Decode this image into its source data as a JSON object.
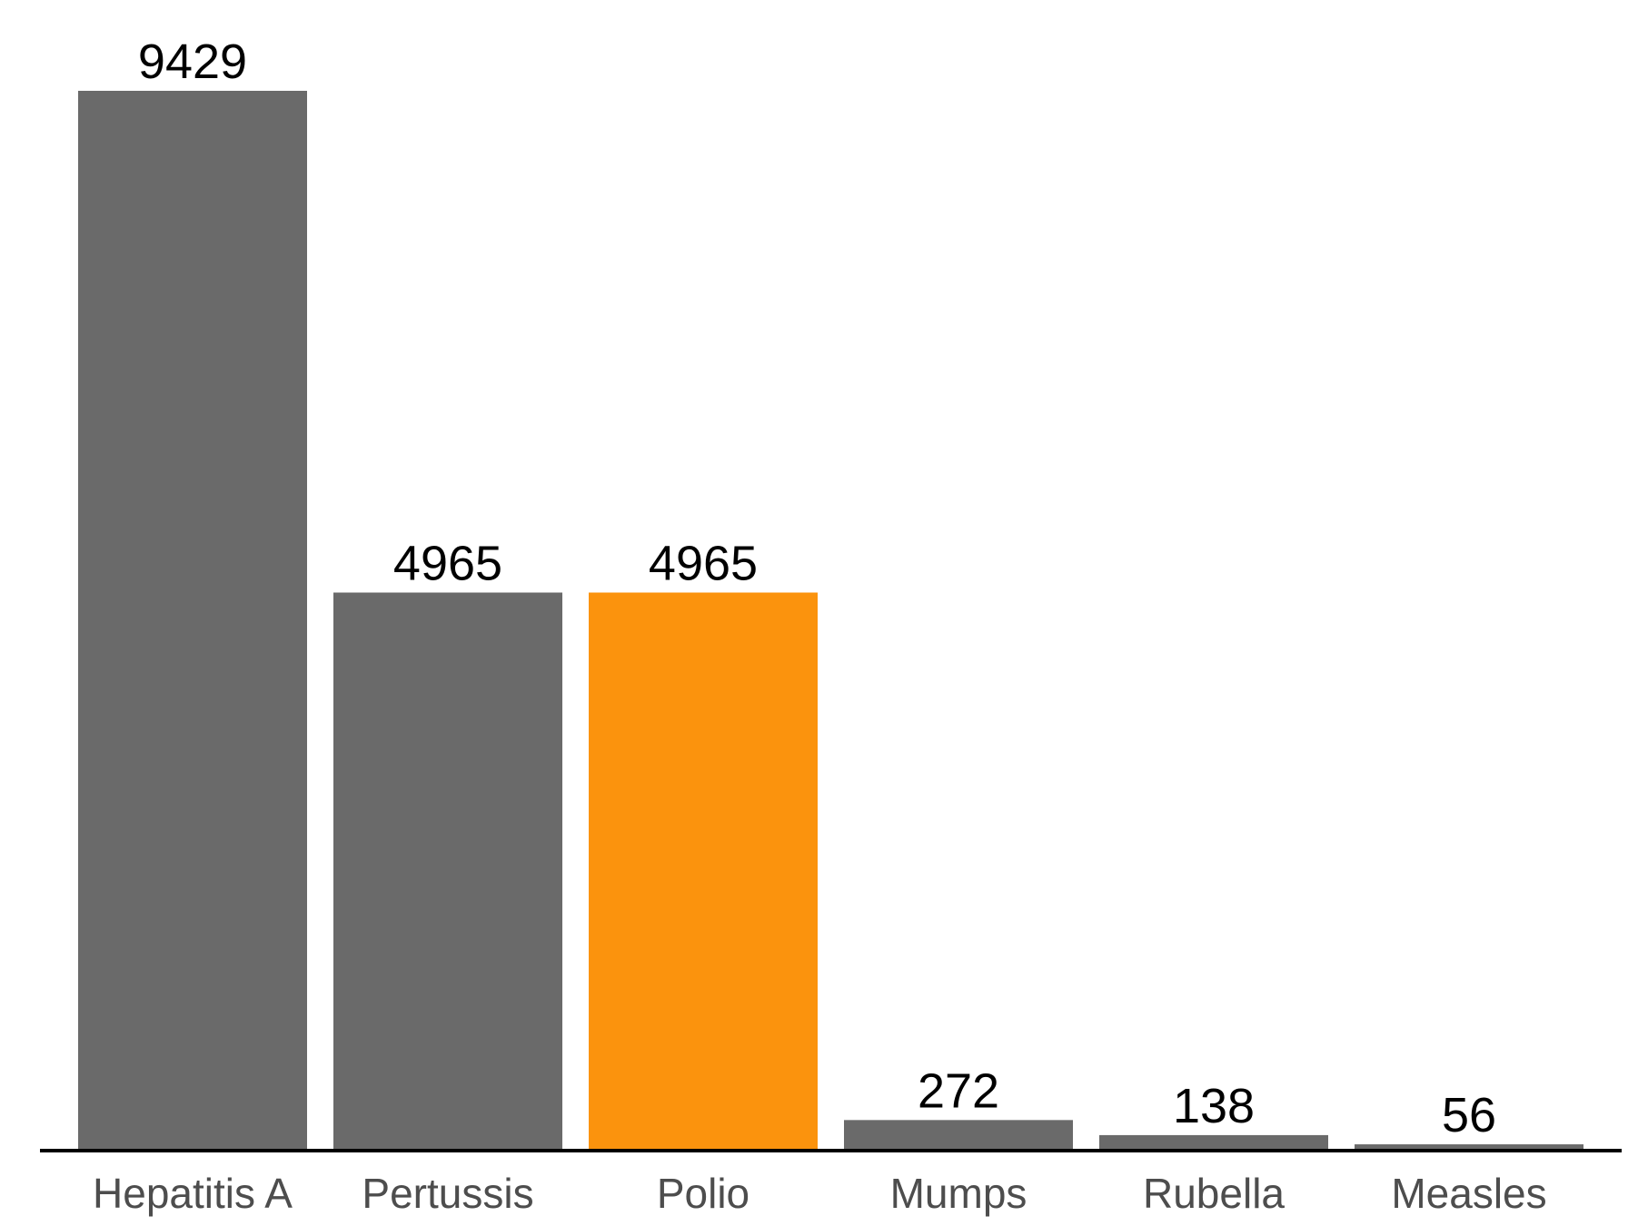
{
  "chart_data": {
    "type": "bar",
    "categories": [
      "Hepatitis A",
      "Pertussis",
      "Polio",
      "Mumps",
      "Rubella",
      "Measles"
    ],
    "values": [
      9429,
      4965,
      4965,
      272,
      138,
      56
    ],
    "data_labels": [
      "9429",
      "4965",
      "4965",
      "272",
      "138",
      "56"
    ],
    "ylim": [
      0,
      9429
    ],
    "grid": false,
    "legend": "none",
    "colors": {
      "default_bar": "#6a6a6a",
      "highlight_bar": "#fb930d",
      "axis_line": "#000000"
    },
    "highlight_category": "Polio"
  }
}
